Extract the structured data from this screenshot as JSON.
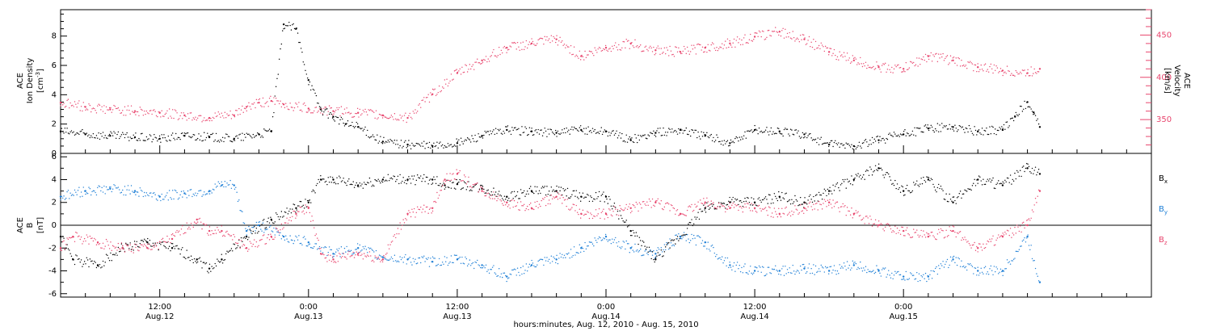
{
  "colors": {
    "density": "#000000",
    "velocity": "#e8466e",
    "bx": "#000000",
    "by": "#1e7fd6",
    "bz": "#e8466e",
    "axis": "#000000"
  },
  "chart_data": [
    {
      "type": "scatter",
      "panel": "top",
      "ylabel_lines": [
        "ACE",
        "Ion Density"
      ],
      "ylabel_unit": "[cm",
      "ylabel_unit_sup": "-3",
      "ylabel_unit_end": "]",
      "ylim": [
        0,
        9.8
      ],
      "yticks": [
        0,
        2,
        4,
        6,
        8
      ],
      "ylabel_right_lines": [
        "ACE",
        "Velocity"
      ],
      "ylabel_right_unit": "[km/s]",
      "y2lim": [
        310,
        480
      ],
      "y2ticks": [
        350,
        400,
        450
      ],
      "xlim": [
        0,
        88
      ],
      "series": [
        {
          "color_key": "density",
          "axis": "left",
          "x": [
            0,
            2,
            4,
            6,
            8,
            10,
            12,
            14,
            16,
            17,
            18,
            19,
            20,
            21,
            22,
            23,
            24,
            26,
            28,
            30,
            32,
            34,
            36,
            38,
            40,
            42,
            44,
            46,
            48,
            50,
            52,
            54,
            56,
            58,
            60,
            62,
            64,
            66,
            68,
            70,
            72,
            74,
            76,
            77,
            78,
            78.5,
            79
          ],
          "y": [
            1.5,
            1.3,
            1.2,
            1.1,
            1.0,
            1.2,
            1.1,
            1.0,
            1.3,
            1.5,
            8.8,
            8.5,
            5.0,
            3.0,
            2.5,
            2.0,
            1.8,
            0.8,
            0.6,
            0.5,
            0.7,
            1.2,
            1.6,
            1.5,
            1.4,
            1.6,
            1.5,
            0.9,
            1.4,
            1.6,
            1.2,
            0.7,
            1.6,
            1.5,
            1.3,
            0.6,
            0.5,
            0.9,
            1.3,
            1.7,
            1.8,
            1.5,
            1.6,
            2.5,
            3.5,
            2.8,
            1.8
          ]
        },
        {
          "color_key": "velocity",
          "axis": "right",
          "x": [
            0,
            2,
            4,
            6,
            8,
            10,
            12,
            14,
            15,
            16,
            17,
            18,
            20,
            22,
            24,
            26,
            28,
            30,
            32,
            34,
            36,
            38,
            40,
            42,
            44,
            46,
            48,
            50,
            52,
            54,
            56,
            58,
            60,
            62,
            64,
            66,
            68,
            70,
            72,
            74,
            76,
            78,
            79
          ],
          "y": [
            370,
            365,
            362,
            360,
            358,
            355,
            352,
            355,
            365,
            370,
            372,
            368,
            363,
            360,
            358,
            355,
            352,
            380,
            405,
            420,
            435,
            440,
            445,
            425,
            435,
            440,
            432,
            430,
            435,
            440,
            448,
            454,
            445,
            430,
            420,
            412,
            410,
            425,
            420,
            412,
            408,
            405,
            410
          ]
        }
      ]
    },
    {
      "type": "scatter",
      "panel": "bottom",
      "ylabel_lines": [
        "ACE",
        "B"
      ],
      "ylabel_unit": "[nT]",
      "ylim": [
        -6.3,
        6.3
      ],
      "yticks": [
        -6,
        -4,
        -2,
        0,
        2,
        4,
        6
      ],
      "xlim": [
        0,
        88
      ],
      "xticks": [
        {
          "x": 8,
          "time": "12:00",
          "date": "Aug.12"
        },
        {
          "x": 20,
          "time": "0:00",
          "date": "Aug.13"
        },
        {
          "x": 32,
          "time": "12:00",
          "date": "Aug.13"
        },
        {
          "x": 44,
          "time": "0:00",
          "date": "Aug.14"
        },
        {
          "x": 56,
          "time": "12:00",
          "date": "Aug.14"
        },
        {
          "x": 68,
          "time": "0:00",
          "date": "Aug.15"
        }
      ],
      "xlabel": "hours:minutes, Aug. 12, 2010 - Aug. 15, 2010",
      "legend": [
        {
          "base": "B",
          "sub": "x",
          "color_key": "bx"
        },
        {
          "base": "B",
          "sub": "y",
          "color_key": "by"
        },
        {
          "base": "B",
          "sub": "z",
          "color_key": "bz"
        }
      ],
      "series": [
        {
          "color_key": "bx",
          "x": [
            0,
            1,
            3,
            5,
            7,
            9,
            11,
            12,
            13,
            15,
            17,
            19,
            20,
            21,
            22,
            24,
            26,
            28,
            30,
            31,
            32,
            34,
            36,
            38,
            40,
            42,
            44,
            46,
            48,
            50,
            52,
            54,
            56,
            58,
            60,
            62,
            64,
            66,
            68,
            70,
            72,
            74,
            76,
            78,
            79
          ],
          "y": [
            -1,
            -3,
            -3.5,
            -2,
            -1.5,
            -2,
            -3,
            -3.8,
            -3,
            -1,
            0.5,
            1.5,
            2,
            4,
            4,
            3.5,
            4,
            4,
            4,
            3.5,
            3.6,
            3.2,
            2.5,
            3,
            3,
            2.5,
            2.5,
            -0.5,
            -3,
            -1,
            1.5,
            2,
            2,
            2.5,
            2,
            3,
            4,
            5,
            3,
            4,
            2,
            4,
            3.5,
            5,
            4.5
          ]
        },
        {
          "color_key": "by",
          "x": [
            0,
            2,
            4,
            6,
            8,
            10,
            12,
            13,
            14,
            15,
            16,
            18,
            20,
            22,
            24,
            26,
            28,
            30,
            32,
            34,
            36,
            38,
            40,
            42,
            44,
            46,
            48,
            50,
            52,
            54,
            56,
            58,
            60,
            62,
            64,
            66,
            68,
            70,
            72,
            74,
            76,
            78,
            79
          ],
          "y": [
            2.5,
            3,
            3.2,
            3,
            2.5,
            2.8,
            3,
            3.5,
            3.5,
            -0.5,
            0,
            -1,
            -1.5,
            -2.5,
            -2,
            -2.8,
            -3,
            -3.2,
            -3,
            -3.5,
            -4.5,
            -3.5,
            -3,
            -2,
            -1,
            -2,
            -2.5,
            -1,
            -1.5,
            -3.5,
            -4,
            -4,
            -3.8,
            -4,
            -3.5,
            -4,
            -4.5,
            -4.5,
            -3,
            -4,
            -4,
            -1,
            -5
          ]
        },
        {
          "color_key": "bz",
          "x": [
            0,
            1,
            3,
            5,
            7,
            9,
            11,
            12,
            13,
            15,
            17,
            19,
            20,
            21,
            22,
            24,
            26,
            28,
            30,
            31,
            32,
            34,
            36,
            38,
            40,
            42,
            44,
            46,
            48,
            50,
            52,
            54,
            56,
            58,
            60,
            62,
            64,
            66,
            68,
            70,
            72,
            74,
            76,
            78,
            79
          ],
          "y": [
            -2,
            -1,
            -1.5,
            -2,
            -2,
            -1.2,
            0.5,
            -0.5,
            -0.5,
            -2,
            -1,
            1,
            1.5,
            -2.5,
            -3,
            -2.5,
            -3,
            1,
            1.5,
            4,
            4.5,
            3,
            2,
            1.5,
            2.5,
            1,
            1,
            1.5,
            2,
            1,
            2,
            1.5,
            1.5,
            1,
            1.5,
            2,
            1,
            0,
            -0.5,
            -1,
            -0.5,
            -2,
            -1,
            0,
            3
          ]
        }
      ]
    }
  ]
}
